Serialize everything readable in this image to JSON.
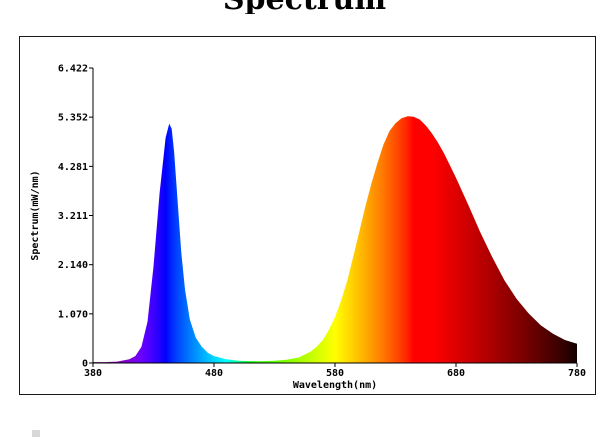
{
  "page": {
    "title_fragment": "Spectrum"
  },
  "chart_data": {
    "type": "area",
    "title": "",
    "xlabel": "Wavelength(nm)",
    "ylabel": "Spectrum(mW/nm)",
    "xlim": [
      380,
      780
    ],
    "ylim": [
      0,
      6.422
    ],
    "x_ticks": [
      380,
      480,
      580,
      680,
      780
    ],
    "x_tick_labels": [
      "380",
      "480",
      "580",
      "680",
      "780"
    ],
    "y_ticks": [
      0,
      1.07,
      2.14,
      3.211,
      4.281,
      5.352,
      6.422
    ],
    "y_tick_labels": [
      "0",
      "1.070",
      "2.140",
      "3.211",
      "4.281",
      "5.352",
      "6.422"
    ],
    "grid": false,
    "fill": "wavelength-color gradient",
    "series": [
      {
        "x": [
          380,
          390,
          400,
          410,
          415,
          420,
          425,
          430,
          435,
          440,
          443,
          445,
          447,
          450,
          453,
          456,
          460,
          465,
          470,
          475,
          480,
          490,
          500,
          510,
          520,
          530,
          540,
          550,
          560,
          565,
          570,
          575,
          580,
          585,
          590,
          595,
          600,
          605,
          610,
          615,
          620,
          625,
          630,
          635,
          640,
          645,
          650,
          655,
          660,
          665,
          670,
          675,
          680,
          690,
          700,
          710,
          720,
          730,
          740,
          750,
          760,
          770,
          780
        ],
        "y": [
          0.02,
          0.02,
          0.03,
          0.08,
          0.15,
          0.35,
          0.9,
          2.1,
          3.7,
          4.9,
          5.21,
          5.1,
          4.6,
          3.5,
          2.4,
          1.6,
          0.95,
          0.55,
          0.35,
          0.22,
          0.15,
          0.08,
          0.05,
          0.04,
          0.04,
          0.05,
          0.07,
          0.12,
          0.25,
          0.36,
          0.5,
          0.72,
          1.0,
          1.35,
          1.78,
          2.3,
          2.85,
          3.4,
          3.9,
          4.35,
          4.75,
          5.05,
          5.22,
          5.33,
          5.37,
          5.36,
          5.3,
          5.17,
          5.0,
          4.8,
          4.57,
          4.3,
          4.03,
          3.45,
          2.85,
          2.3,
          1.8,
          1.4,
          1.08,
          0.82,
          0.64,
          0.5,
          0.42
        ]
      }
    ]
  }
}
